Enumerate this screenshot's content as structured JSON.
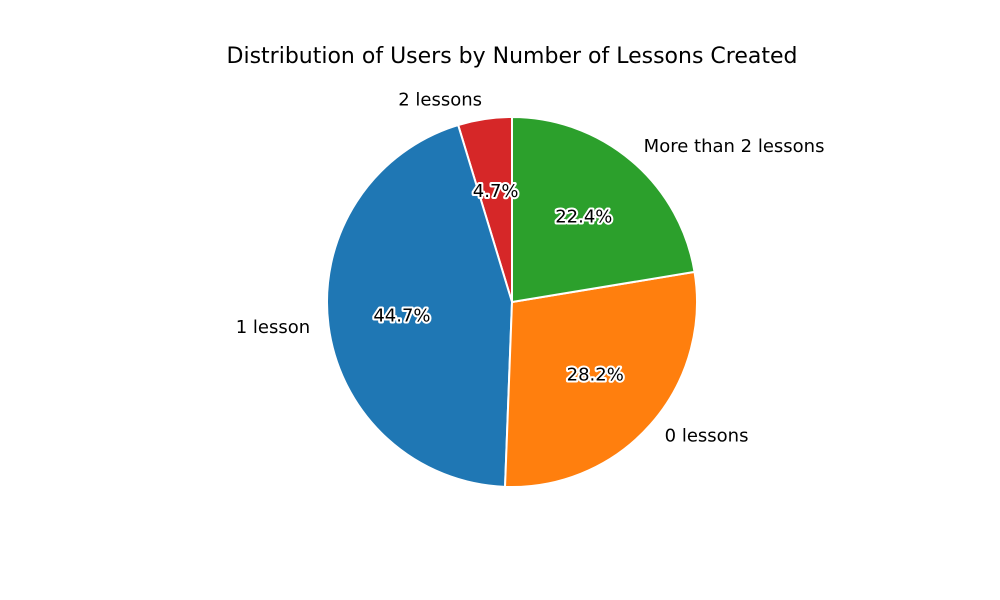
{
  "chart_data": {
    "type": "pie",
    "title": "Distribution of Users by Number of Lessons Created",
    "slices": [
      {
        "label": "2 lessons",
        "value": 4.7,
        "pct_label": "4.7%",
        "color": "#d62728"
      },
      {
        "label": "1 lesson",
        "value": 44.7,
        "pct_label": "44.7%",
        "color": "#1f77b4"
      },
      {
        "label": "0 lessons",
        "value": 28.2,
        "pct_label": "28.2%",
        "color": "#ff7f0e"
      },
      {
        "label": "More than 2 lessons",
        "value": 22.4,
        "pct_label": "22.4%",
        "color": "#2ca02c"
      }
    ],
    "start_angle_deg": 90,
    "direction": "counterclockwise",
    "edge_color": "#ffffff",
    "legend": "none"
  }
}
